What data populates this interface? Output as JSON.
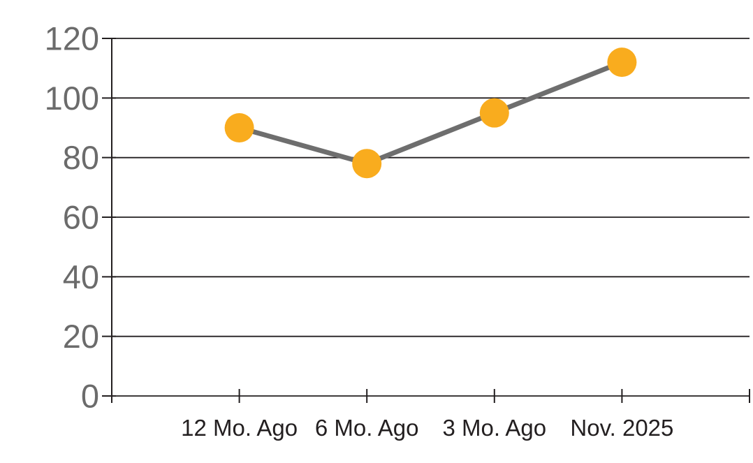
{
  "chart_data": {
    "type": "line",
    "categories": [
      "12 Mo. Ago",
      "6 Mo. Ago",
      "3 Mo. Ago",
      "Nov. 2025"
    ],
    "values": [
      90,
      78,
      95,
      112
    ],
    "ylim": [
      0,
      120
    ],
    "ytick_step": 20,
    "ytick_labels": [
      "0",
      "20",
      "40",
      "60",
      "80",
      "100",
      "120"
    ],
    "grid": "horizontal",
    "legend": "none",
    "marker_style": "filled-circle",
    "colors": {
      "marker": "#F9AC1E",
      "line": "#6E6E6E",
      "gridline": "#231F20",
      "axis": "#231F20",
      "y_tick_label": "#6B6B6B",
      "x_tick_label": "#231F20",
      "background": "#FFFFFF"
    }
  }
}
